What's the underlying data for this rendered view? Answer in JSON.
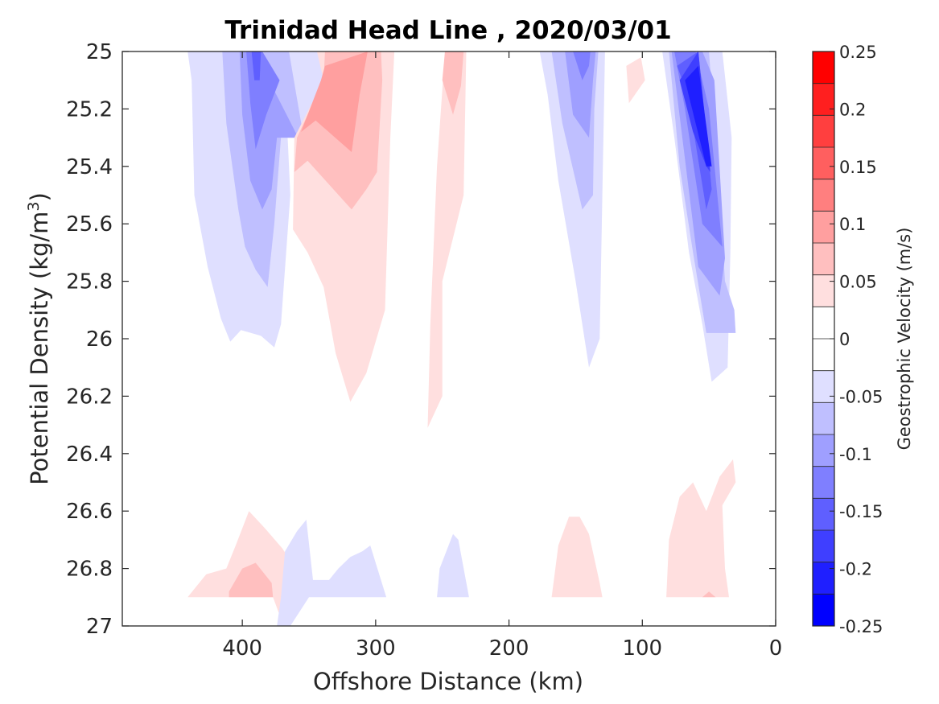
{
  "chart_data": {
    "type": "heatmap",
    "subtype": "filled-contour",
    "title": "Trinidad Head Line , 2020/03/01",
    "xlabel": "Offshore Distance (km)",
    "ylabel_main": "Potential Density (kg/m",
    "ylabel_sup": "3",
    "ylabel_end": ")",
    "colorbar_label": "Geostrophic Velocity (m/s)",
    "x_reversed": true,
    "xlim": [
      0,
      490
    ],
    "ylim": [
      25,
      27
    ],
    "y_reversed": true,
    "grid": false,
    "x_ticks": [
      400,
      300,
      200,
      100,
      0
    ],
    "y_ticks": [
      {
        "value": 25,
        "label": "25"
      },
      {
        "value": 25.2,
        "label": "25.2"
      },
      {
        "value": 25.4,
        "label": "25.4"
      },
      {
        "value": 25.6,
        "label": "25.6"
      },
      {
        "value": 25.8,
        "label": "25.8"
      },
      {
        "value": 26,
        "label": "26"
      },
      {
        "value": 26.2,
        "label": "26.2"
      },
      {
        "value": 26.4,
        "label": "26.4"
      },
      {
        "value": 26.6,
        "label": "26.6"
      },
      {
        "value": 26.8,
        "label": "26.8"
      },
      {
        "value": 27,
        "label": "27"
      }
    ],
    "colorbar": {
      "range": [
        -0.25,
        0.25
      ],
      "step": 0.025,
      "colors_high_to_low": [
        "#ff0000",
        "#ff1f1f",
        "#ff3f3f",
        "#ff5f5f",
        "#ff7f7f",
        "#ff9f9f",
        "#ffbfbf",
        "#ffdfdf",
        "#ffffff",
        "#ffffff",
        "#dfdfff",
        "#bfbfff",
        "#9f9fff",
        "#7f7fff",
        "#5f5fff",
        "#3f3fff",
        "#1f1fff",
        "#0000ff"
      ],
      "ticks": [
        {
          "value": 0.25,
          "label": "0.25"
        },
        {
          "value": 0.2,
          "label": "0.2"
        },
        {
          "value": 0.15,
          "label": "0.15"
        },
        {
          "value": 0.1,
          "label": "0.1"
        },
        {
          "value": 0.05,
          "label": "0.05"
        },
        {
          "value": 0,
          "label": "0"
        },
        {
          "value": -0.05,
          "label": "-0.05"
        },
        {
          "value": -0.1,
          "label": "-0.1"
        },
        {
          "value": -0.15,
          "label": "-0.15"
        },
        {
          "value": -0.2,
          "label": "-0.2"
        },
        {
          "value": -0.25,
          "label": "-0.25"
        }
      ]
    },
    "regions": [
      {
        "name": "blue-400km-l1",
        "level": -0.05,
        "color": "#dfdfff",
        "points": [
          [
            441,
            25.0
          ],
          [
            438,
            25.1
          ],
          [
            436,
            25.5
          ],
          [
            426,
            25.75
          ],
          [
            416,
            25.93
          ],
          [
            409,
            26.01
          ],
          [
            401,
            25.97
          ],
          [
            386,
            25.99
          ],
          [
            376,
            26.03
          ],
          [
            371,
            25.95
          ],
          [
            364,
            25.5
          ],
          [
            366,
            25.3
          ],
          [
            357,
            25.3
          ],
          [
            340,
            25.1
          ],
          [
            330,
            25.0
          ]
        ]
      },
      {
        "name": "blue-400km-l2",
        "level": -0.075,
        "color": "#bfbfff",
        "points": [
          [
            415,
            25.0
          ],
          [
            412,
            25.25
          ],
          [
            403,
            25.55
          ],
          [
            398,
            25.68
          ],
          [
            390,
            25.76
          ],
          [
            381,
            25.82
          ],
          [
            376,
            25.6
          ],
          [
            371,
            25.3
          ],
          [
            354,
            25.3
          ],
          [
            365,
            25.0
          ]
        ]
      },
      {
        "name": "blue-400km-l3",
        "level": -0.1,
        "color": "#9f9fff",
        "points": [
          [
            402,
            25.0
          ],
          [
            400,
            25.22
          ],
          [
            394,
            25.45
          ],
          [
            385,
            25.55
          ],
          [
            378,
            25.48
          ],
          [
            374,
            25.3
          ],
          [
            358,
            25.3
          ],
          [
            380,
            25.1
          ],
          [
            385,
            25.0
          ]
        ]
      },
      {
        "name": "blue-400km-l4",
        "level": -0.125,
        "color": "#7f7fff",
        "points": [
          [
            397,
            25.0
          ],
          [
            394,
            25.18
          ],
          [
            390,
            25.34
          ],
          [
            382,
            25.22
          ],
          [
            372,
            25.1
          ],
          [
            385,
            25.0
          ]
        ]
      },
      {
        "name": "blue-400km-l5",
        "level": -0.15,
        "color": "#5f5fff",
        "points": [
          [
            393,
            25.0
          ],
          [
            391,
            25.1
          ],
          [
            387,
            25.1
          ],
          [
            386,
            25.0
          ]
        ]
      },
      {
        "name": "red-330km-l1",
        "level": 0.025,
        "color": "#ffdfdf",
        "points": [
          [
            344,
            25.0
          ],
          [
            339,
            25.1
          ],
          [
            361,
            25.3
          ],
          [
            362,
            25.62
          ],
          [
            351,
            25.7
          ],
          [
            339,
            25.82
          ],
          [
            330,
            26.05
          ],
          [
            319,
            26.22
          ],
          [
            307,
            26.12
          ],
          [
            293,
            25.9
          ],
          [
            289,
            25.3
          ],
          [
            286,
            25.0
          ]
        ]
      },
      {
        "name": "red-330km-l2",
        "level": 0.05,
        "color": "#ffbfbf",
        "points": [
          [
            338,
            25.0
          ],
          [
            339,
            25.1
          ],
          [
            359,
            25.3
          ],
          [
            361,
            25.42
          ],
          [
            351,
            25.38
          ],
          [
            318,
            25.55
          ],
          [
            307,
            25.48
          ],
          [
            299,
            25.42
          ],
          [
            295,
            25.1
          ],
          [
            296,
            25.0
          ]
        ]
      },
      {
        "name": "red-330km-l3",
        "level": 0.075,
        "color": "#ff9f9f",
        "points": [
          [
            338,
            25.05
          ],
          [
            341,
            25.1
          ],
          [
            356,
            25.28
          ],
          [
            345,
            25.24
          ],
          [
            318,
            25.35
          ],
          [
            312,
            25.15
          ],
          [
            306,
            25.0
          ]
        ]
      },
      {
        "name": "red-250km-l1",
        "level": 0.025,
        "color": "#ffdfdf",
        "points": [
          [
            248,
            25.0
          ],
          [
            254,
            25.4
          ],
          [
            259,
            25.95
          ],
          [
            261,
            26.31
          ],
          [
            250,
            26.2
          ],
          [
            250,
            25.8
          ],
          [
            234,
            25.5
          ],
          [
            232,
            25.0
          ]
        ]
      },
      {
        "name": "red-250km-l2",
        "level": 0.05,
        "color": "#ffbfbf",
        "points": [
          [
            248,
            25.0
          ],
          [
            250,
            25.1
          ],
          [
            242,
            25.22
          ],
          [
            236,
            25.12
          ],
          [
            234,
            25.0
          ]
        ]
      },
      {
        "name": "blue-150km-l1",
        "level": -0.05,
        "color": "#dfdfff",
        "points": [
          [
            177,
            25.0
          ],
          [
            171,
            25.15
          ],
          [
            163,
            25.45
          ],
          [
            150,
            25.8
          ],
          [
            140,
            26.1
          ],
          [
            132,
            26.0
          ],
          [
            130,
            25.5
          ],
          [
            128,
            25.0
          ]
        ]
      },
      {
        "name": "blue-150km-l2",
        "level": -0.075,
        "color": "#bfbfff",
        "points": [
          [
            168,
            25.0
          ],
          [
            160,
            25.25
          ],
          [
            145,
            25.55
          ],
          [
            137,
            25.5
          ],
          [
            136,
            25.2
          ],
          [
            133,
            25.0
          ]
        ]
      },
      {
        "name": "blue-150km-l3",
        "level": -0.1,
        "color": "#9f9fff",
        "points": [
          [
            158,
            25.0
          ],
          [
            152,
            25.22
          ],
          [
            140,
            25.3
          ],
          [
            137,
            25.1
          ],
          [
            135,
            25.0
          ]
        ]
      },
      {
        "name": "blue-150km-l4",
        "level": -0.125,
        "color": "#7f7fff",
        "points": [
          [
            152,
            25.0
          ],
          [
            145,
            25.1
          ],
          [
            140,
            25.05
          ],
          [
            139,
            25.0
          ]
        ]
      },
      {
        "name": "red-110km-l1",
        "level": 0.025,
        "color": "#ffdfdf",
        "points": [
          [
            112,
            25.05
          ],
          [
            101,
            25.02
          ],
          [
            98,
            25.1
          ],
          [
            110,
            25.18
          ]
        ]
      },
      {
        "name": "blue-60km-l1",
        "level": -0.05,
        "color": "#dfdfff",
        "points": [
          [
            85,
            25.0
          ],
          [
            76,
            25.3
          ],
          [
            65,
            25.7
          ],
          [
            55,
            25.95
          ],
          [
            48,
            26.15
          ],
          [
            36,
            26.1
          ],
          [
            34,
            25.7
          ],
          [
            33,
            25.3
          ],
          [
            40,
            25.0
          ]
        ]
      },
      {
        "name": "blue-60km-l2",
        "level": -0.075,
        "color": "#bfbfff",
        "points": [
          [
            80,
            25.0
          ],
          [
            72,
            25.4
          ],
          [
            62,
            25.7
          ],
          [
            52,
            25.98
          ],
          [
            30,
            25.98
          ],
          [
            31,
            25.9
          ],
          [
            38,
            25.8
          ],
          [
            42,
            25.5
          ],
          [
            50,
            25.0
          ]
        ]
      },
      {
        "name": "blue-60km-l3",
        "level": -0.1,
        "color": "#9f9fff",
        "points": [
          [
            78,
            25.0
          ],
          [
            70,
            25.3
          ],
          [
            58,
            25.75
          ],
          [
            42,
            25.85
          ],
          [
            38,
            25.72
          ],
          [
            46,
            25.1
          ],
          [
            55,
            25.0
          ]
        ]
      },
      {
        "name": "blue-60km-l4",
        "level": -0.125,
        "color": "#7f7fff",
        "points": [
          [
            76,
            25.0
          ],
          [
            68,
            25.2
          ],
          [
            55,
            25.6
          ],
          [
            40,
            25.68
          ],
          [
            50,
            25.2
          ],
          [
            60,
            25.0
          ]
        ]
      },
      {
        "name": "blue-60km-l5",
        "level": -0.15,
        "color": "#5f5fff",
        "points": [
          [
            74,
            25.05
          ],
          [
            66,
            25.15
          ],
          [
            52,
            25.55
          ],
          [
            48,
            25.48
          ],
          [
            58,
            25.0
          ]
        ]
      },
      {
        "name": "blue-60km-l6",
        "level": -0.175,
        "color": "#3f3fff",
        "points": [
          [
            72,
            25.1
          ],
          [
            62,
            25.28
          ],
          [
            52,
            25.4
          ],
          [
            49,
            25.42
          ],
          [
            58,
            25.0
          ]
        ]
      },
      {
        "name": "blue-60km-l7",
        "level": -0.2,
        "color": "#1f1fff",
        "points": [
          [
            68,
            25.1
          ],
          [
            52,
            25.4
          ],
          [
            48,
            25.4
          ],
          [
            58,
            25.05
          ]
        ]
      },
      {
        "name": "red-deep-400km-l1",
        "level": 0.025,
        "color": "#ffdfdf",
        "points": [
          [
            441,
            26.9
          ],
          [
            427,
            26.82
          ],
          [
            412,
            26.8
          ],
          [
            405,
            26.72
          ],
          [
            395,
            26.6
          ],
          [
            383,
            26.66
          ],
          [
            370,
            26.73
          ],
          [
            360,
            26.8
          ],
          [
            369,
            27.0
          ],
          [
            377,
            26.9
          ],
          [
            377,
            26.9
          ],
          [
            441,
            26.9
          ]
        ]
      },
      {
        "name": "red-deep-400km-l2",
        "level": 0.05,
        "color": "#ffbfbf",
        "points": [
          [
            410,
            26.88
          ],
          [
            400,
            26.8
          ],
          [
            390,
            26.78
          ],
          [
            378,
            26.85
          ],
          [
            377,
            26.9
          ],
          [
            410,
            26.9
          ]
        ]
      },
      {
        "name": "blue-deep-350km-l1",
        "level": -0.05,
        "color": "#dfdfff",
        "points": [
          [
            374,
            27.0
          ],
          [
            371,
            26.9
          ],
          [
            368,
            26.74
          ],
          [
            359,
            26.67
          ],
          [
            352,
            26.63
          ],
          [
            347,
            26.84
          ],
          [
            335,
            26.84
          ],
          [
            328,
            26.8
          ],
          [
            319,
            26.76
          ],
          [
            310,
            26.74
          ],
          [
            304,
            26.72
          ],
          [
            292,
            26.9
          ],
          [
            345,
            26.9
          ],
          [
            350,
            26.9
          ],
          [
            364,
            27.0
          ]
        ]
      },
      {
        "name": "red-deep-150km-l1",
        "level": 0.025,
        "color": "#ffdfdf",
        "points": [
          [
            168,
            26.9
          ],
          [
            163,
            26.72
          ],
          [
            155,
            26.62
          ],
          [
            147,
            26.62
          ],
          [
            140,
            26.68
          ],
          [
            132,
            26.85
          ],
          [
            130,
            26.9
          ]
        ]
      },
      {
        "name": "blue-deep-240km-l1",
        "level": -0.05,
        "color": "#dfdfff",
        "points": [
          [
            254,
            26.9
          ],
          [
            252,
            26.8
          ],
          [
            242,
            26.68
          ],
          [
            238,
            26.7
          ],
          [
            230,
            26.9
          ]
        ]
      },
      {
        "name": "red-deep-50km-l1",
        "level": 0.025,
        "color": "#ffdfdf",
        "points": [
          [
            82,
            26.9
          ],
          [
            80,
            26.7
          ],
          [
            72,
            26.55
          ],
          [
            62,
            26.5
          ],
          [
            52,
            26.6
          ],
          [
            42,
            26.48
          ],
          [
            32,
            26.42
          ],
          [
            30,
            26.5
          ],
          [
            40,
            26.58
          ],
          [
            38,
            26.8
          ],
          [
            35,
            26.9
          ]
        ]
      },
      {
        "name": "red-deep-50km-l2",
        "level": 0.05,
        "color": "#ffbfbf",
        "points": [
          [
            55,
            26.9
          ],
          [
            50,
            26.88
          ],
          [
            45,
            26.9
          ]
        ]
      }
    ]
  }
}
